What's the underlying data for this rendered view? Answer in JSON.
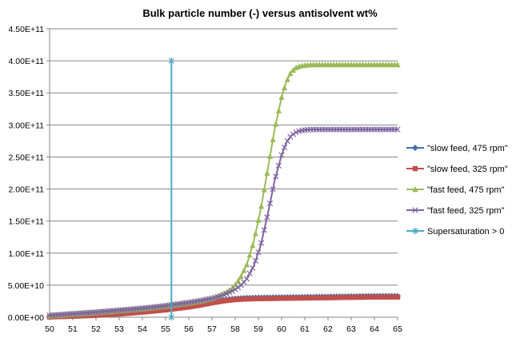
{
  "chart_data": {
    "type": "line",
    "title": "Bulk particle number (-) versus antisolvent wt%",
    "xlabel": "",
    "ylabel": "",
    "xlim": [
      50,
      65
    ],
    "ylim": [
      0,
      450000000000
    ],
    "x_ticks": [
      50,
      51,
      52,
      53,
      54,
      55,
      56,
      57,
      58,
      59,
      60,
      61,
      62,
      63,
      64,
      65
    ],
    "x_tick_labels": [
      "50",
      "51",
      "52",
      "53",
      "54",
      "55",
      "56",
      "57",
      "58",
      "59",
      "60",
      "61",
      "62",
      "63",
      "64",
      "65"
    ],
    "y_ticks": [
      0,
      50000000000,
      100000000000,
      150000000000,
      200000000000,
      250000000000,
      300000000000,
      350000000000,
      400000000000,
      450000000000
    ],
    "y_tick_labels": [
      "0.00E+00",
      "5.00E+10",
      "1.00E+11",
      "1.50E+11",
      "2.00E+11",
      "2.50E+11",
      "3.00E+11",
      "3.50E+11",
      "4.00E+11",
      "4.50E+11"
    ],
    "grid": "horizontal",
    "legend": "right",
    "series": [
      {
        "name": "\"slow feed, 475 rpm\"",
        "color": "#4572A7",
        "marker": "diamond",
        "x": [
          50,
          51,
          52,
          53,
          54,
          55,
          56,
          56.5,
          57,
          57.5,
          58,
          58.5,
          59,
          60,
          61,
          62,
          63,
          64,
          65
        ],
        "y": [
          1000000000,
          2500000000,
          4500000000,
          7000000000,
          10000000000,
          13500000000,
          18000000000,
          21000000000,
          24000000000,
          27000000000,
          29000000000,
          30000000000,
          30500000000,
          31000000000,
          31500000000,
          32000000000,
          32500000000,
          33000000000,
          33000000000
        ]
      },
      {
        "name": "\"slow feed, 325 rpm\"",
        "color": "#C0504D",
        "marker": "square",
        "x": [
          50,
          51,
          52,
          53,
          54,
          55,
          56,
          56.5,
          57,
          57.5,
          58,
          58.5,
          59,
          60,
          61,
          62,
          63,
          64,
          65
        ],
        "y": [
          500000000,
          1500000000,
          3000000000,
          5000000000,
          8000000000,
          11500000000,
          16000000000,
          19000000000,
          22500000000,
          25500000000,
          27500000000,
          28500000000,
          29000000000,
          29500000000,
          30000000000,
          30500000000,
          31000000000,
          31500000000,
          31500000000
        ]
      },
      {
        "name": "\"fast feed, 475 rpm\"",
        "color": "#9BBB59",
        "marker": "triangle",
        "x": [
          50,
          51,
          52,
          53,
          54,
          55,
          56,
          56.5,
          57,
          57.3,
          57.6,
          57.9,
          58.2,
          58.5,
          58.8,
          59.1,
          59.4,
          59.7,
          60,
          60.2,
          60.4,
          60.6,
          60.8,
          61,
          61.3,
          61.6,
          62,
          63,
          64,
          65
        ],
        "y": [
          2000000000,
          4500000000,
          7000000000,
          10000000000,
          13000000000,
          17000000000,
          22000000000,
          25000000000,
          29000000000,
          33000000000,
          38000000000,
          46000000000,
          60000000000,
          82000000000,
          118000000000,
          168000000000,
          230000000000,
          293000000000,
          343000000000,
          367000000000,
          382000000000,
          389000000000,
          392000000000,
          393000000000,
          394000000000,
          394000000000,
          394000000000,
          394000000000,
          394000000000,
          394000000000
        ]
      },
      {
        "name": "\"fast feed, 325 rpm\"",
        "color": "#8064A2",
        "marker": "x",
        "x": [
          50,
          51,
          52,
          53,
          54,
          55,
          56,
          56.5,
          57,
          57.3,
          57.6,
          57.9,
          58.2,
          58.5,
          58.8,
          59.1,
          59.4,
          59.7,
          60,
          60.2,
          60.4,
          60.6,
          60.8,
          61,
          61.3,
          61.6,
          62,
          63,
          64,
          65
        ],
        "y": [
          3000000000,
          5500000000,
          8000000000,
          11000000000,
          14000000000,
          18000000000,
          23000000000,
          26000000000,
          29500000000,
          32500000000,
          36500000000,
          41000000000,
          48000000000,
          60000000000,
          80000000000,
          112000000000,
          160000000000,
          213000000000,
          253000000000,
          272000000000,
          283000000000,
          288000000000,
          291000000000,
          292000000000,
          293000000000,
          293000000000,
          293000000000,
          293000000000,
          293000000000,
          293000000000
        ]
      },
      {
        "name": "Supersaturation > 0",
        "color": "#4BACC6",
        "marker": "star",
        "x": [
          55.25,
          55.25
        ],
        "y": [
          0,
          400000000000
        ]
      }
    ]
  }
}
